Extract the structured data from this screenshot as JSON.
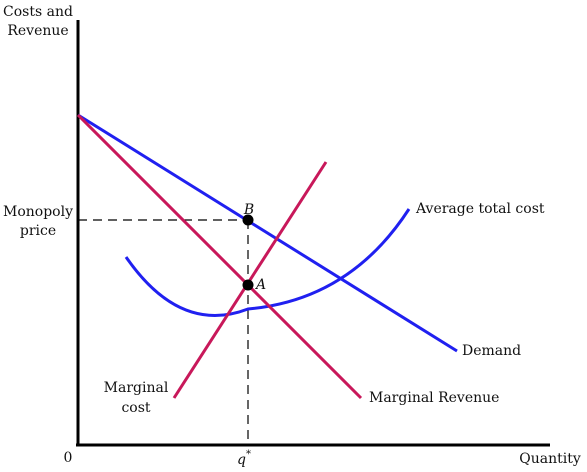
{
  "diagram": {
    "y_axis_label": [
      "Costs and",
      "Revenue"
    ],
    "x_axis_label": "Quantity",
    "origin_label": "0",
    "q_star_label": "q",
    "q_star_superscript": "*",
    "monopoly_price_label": [
      "Monopoly",
      "price"
    ],
    "point_b_label": "B",
    "point_a_label": "A",
    "curves": {
      "demand": "Demand",
      "marginal_revenue": "Marginal Revenue",
      "marginal_cost": [
        "Marginal",
        "cost"
      ],
      "average_total_cost": "Average total cost"
    },
    "colors": {
      "axis": "#000000",
      "demand": "#2020f0",
      "average_total_cost": "#2020f0",
      "marginal_revenue": "#c8185a",
      "marginal_cost": "#c8185a",
      "guides": "#000000",
      "points": "#000000"
    }
  }
}
